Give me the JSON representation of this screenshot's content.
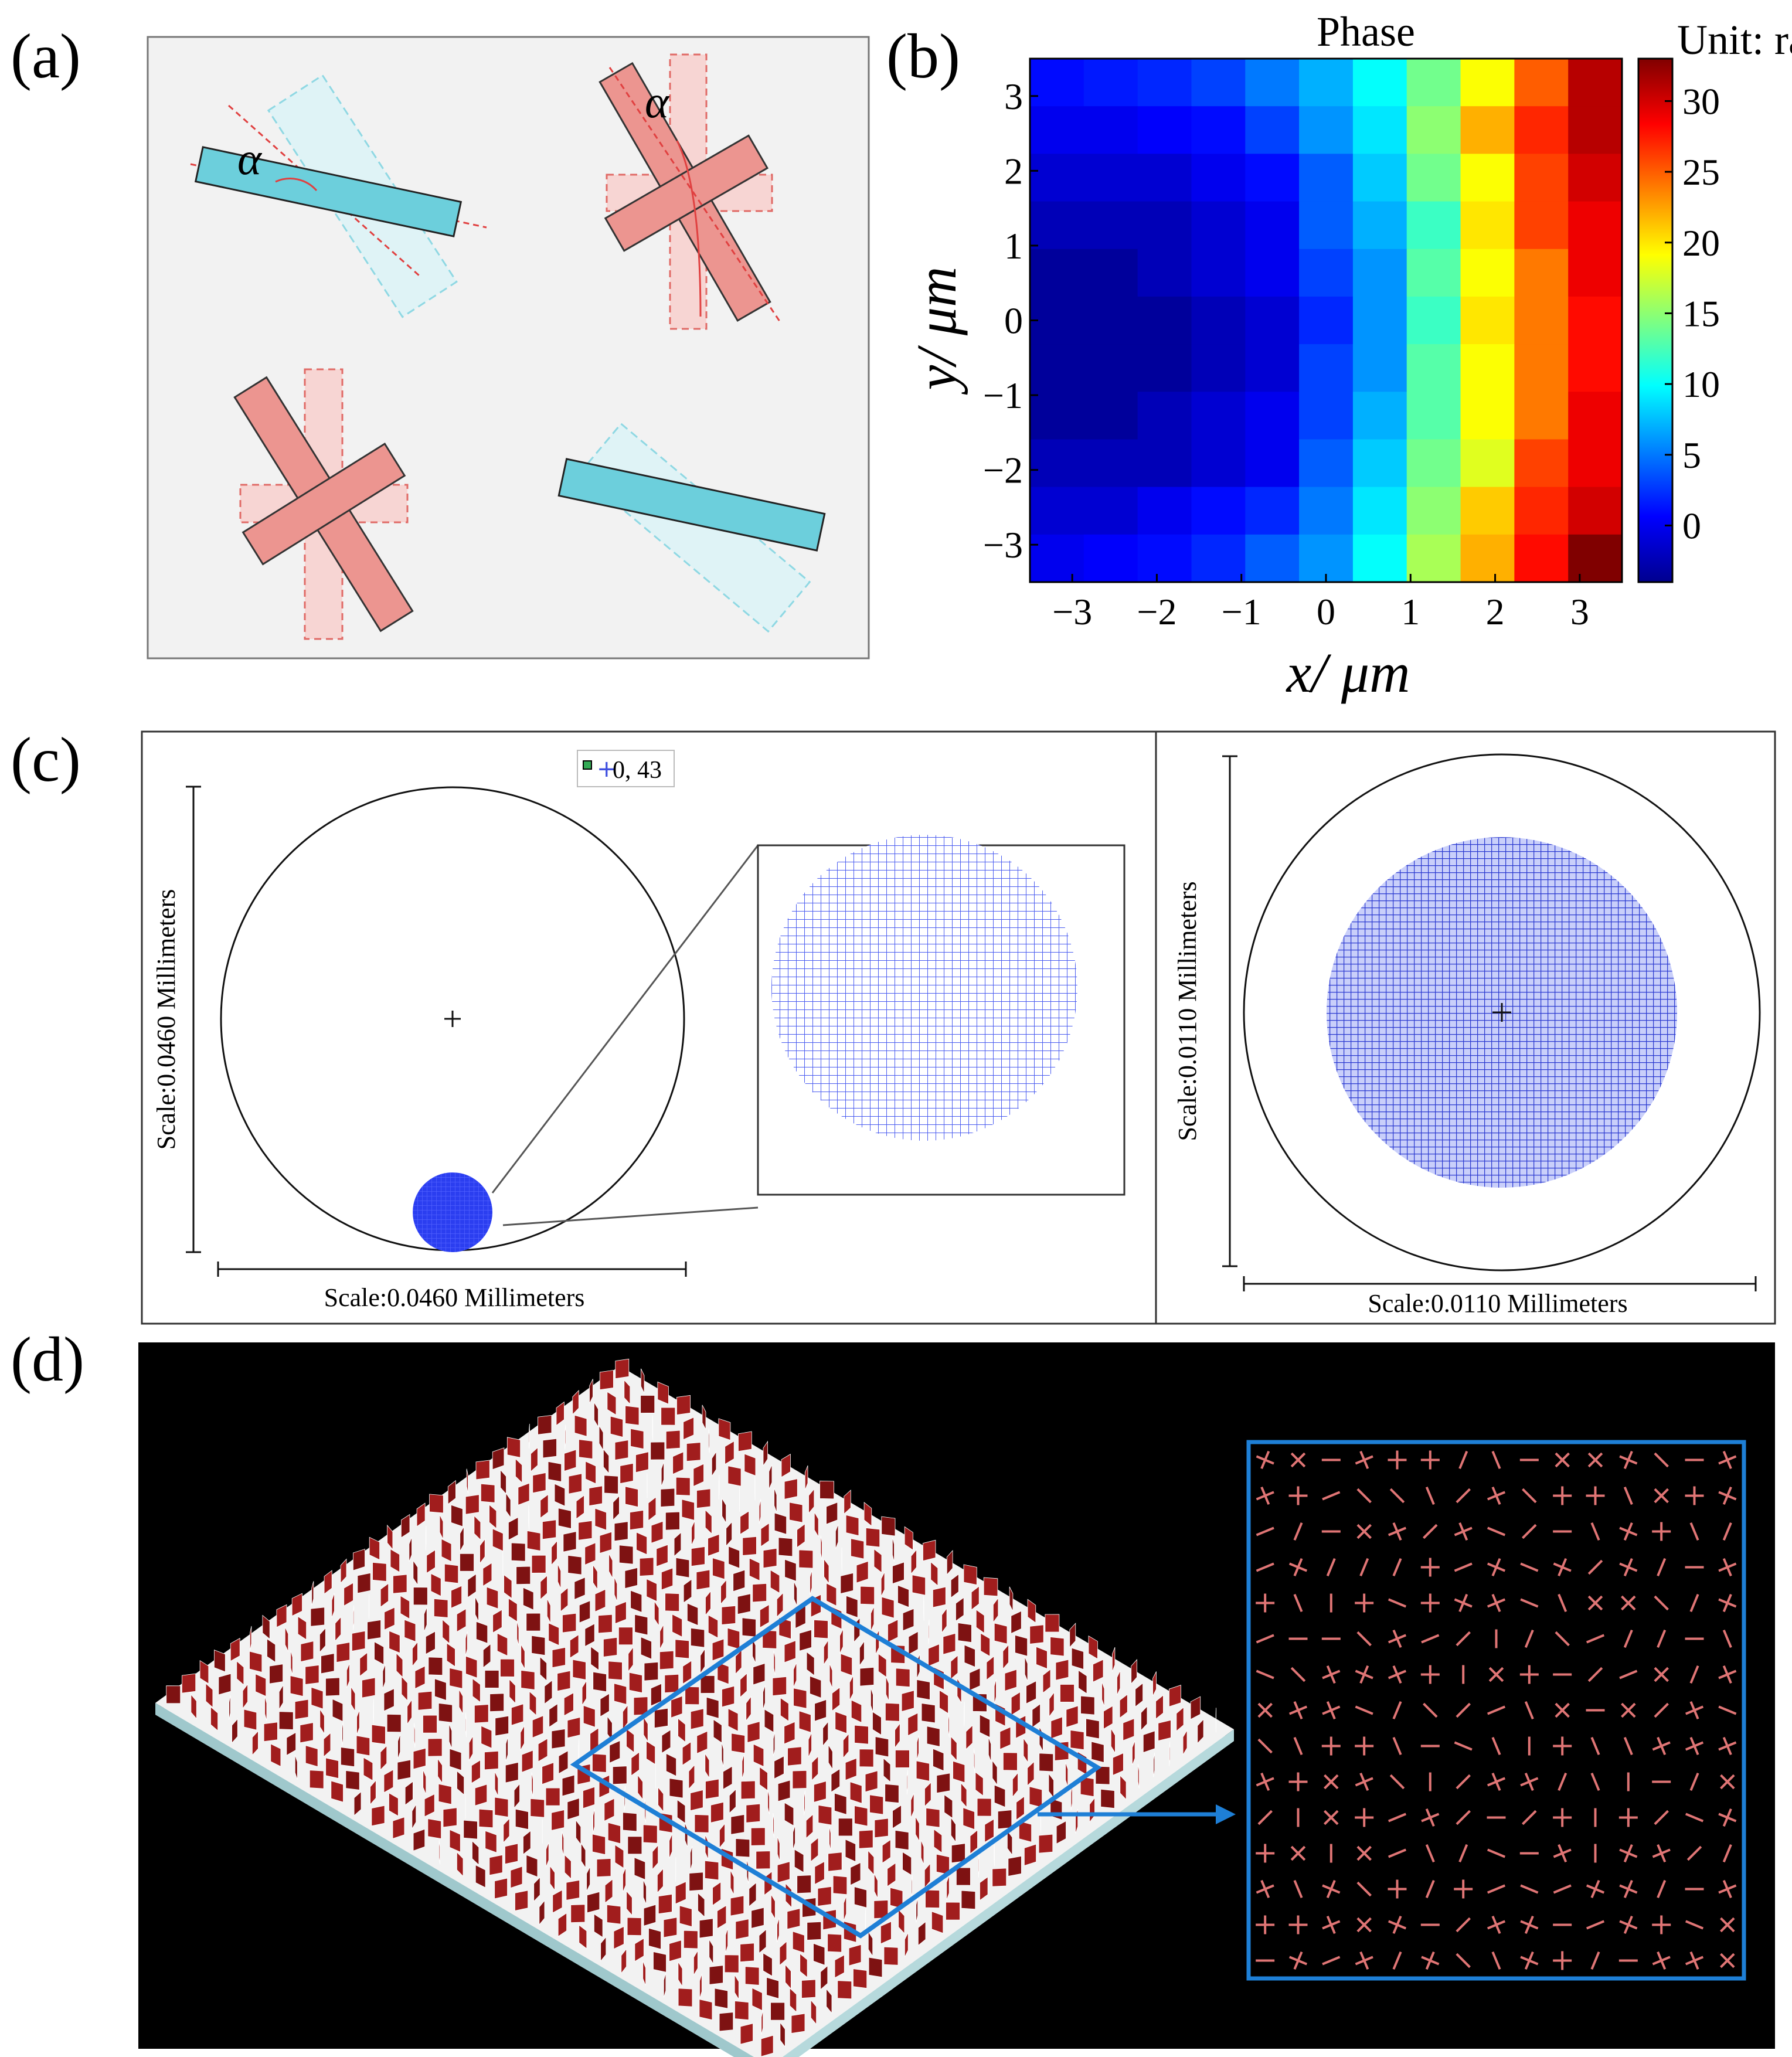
{
  "panels": {
    "a": {
      "label": "(a)",
      "alpha_left": "α",
      "alpha_right": "α"
    },
    "b": {
      "label": "(b)",
      "title": "Phase",
      "unit": "Unit: rad",
      "xlabel": "x/ μm",
      "ylabel": "y/ μm",
      "xticks": [
        "−3",
        "−2",
        "−1",
        "0",
        "1",
        "2",
        "3"
      ],
      "yticks": [
        "3",
        "2",
        "1",
        "0",
        "−1",
        "−2",
        "−3"
      ],
      "cbar_ticks": [
        "30",
        "25",
        "20",
        "15",
        "10",
        "5",
        "0"
      ]
    },
    "c": {
      "label": "(c)",
      "legend": "0, 43",
      "left_scale_v": "Scale:0.0460 Millimeters",
      "left_scale_h": "Scale:0.0460 Millimeters",
      "right_scale_v": "Scale:0.0110 Millimeters",
      "right_scale_h": "Scale:0.0110 Millimeters"
    },
    "d": {
      "label": "(d)"
    }
  },
  "colors": {
    "cyan_bar": "#6ccfdc",
    "pink_cross": "#ec9590",
    "spot_blue": "#2b3ef0",
    "box_blue": "#1e7fd6",
    "dark_red": "#9a1a1a"
  },
  "chart_data": {
    "type": "heatmap",
    "title": "Phase",
    "xlabel": "x/ μm",
    "ylabel": "y/ μm",
    "xlim": [
      -3.5,
      3.5
    ],
    "ylim": [
      -3.5,
      3.5
    ],
    "colorbar_label": "Unit: rad",
    "colorbar_range": [
      -4,
      33
    ],
    "colormap": "jet",
    "rows_top_to_bottom": [
      [
        1,
        1.5,
        2,
        3,
        5,
        7,
        10,
        14,
        19,
        25,
        31
      ],
      [
        0,
        0,
        0.5,
        1,
        3,
        6,
        9,
        15,
        22,
        27,
        31
      ],
      [
        -1,
        -1,
        -1,
        0,
        1,
        4,
        8,
        14,
        19,
        26,
        30
      ],
      [
        -2,
        -2,
        -2,
        -1,
        0,
        4,
        7,
        12,
        20,
        26,
        29
      ],
      [
        -3,
        -3,
        -2,
        -1,
        0,
        3,
        6,
        13,
        19,
        24,
        29
      ],
      [
        -3,
        -3,
        -3,
        -2,
        -1,
        2,
        6,
        12,
        20,
        24,
        28
      ],
      [
        -3,
        -3,
        -3,
        -2,
        -1,
        3,
        6,
        13,
        19,
        24,
        28
      ],
      [
        -3,
        -3,
        -2,
        -1,
        0,
        3,
        7,
        13,
        19,
        24,
        29
      ],
      [
        -2,
        -2,
        -2,
        -1,
        0,
        4,
        8,
        14,
        18,
        26,
        29
      ],
      [
        -1,
        -1,
        0,
        1,
        2,
        5,
        9,
        15,
        21,
        27,
        30
      ],
      [
        0,
        0.5,
        1,
        2,
        4,
        6,
        10,
        16,
        22,
        28,
        33
      ]
    ]
  }
}
